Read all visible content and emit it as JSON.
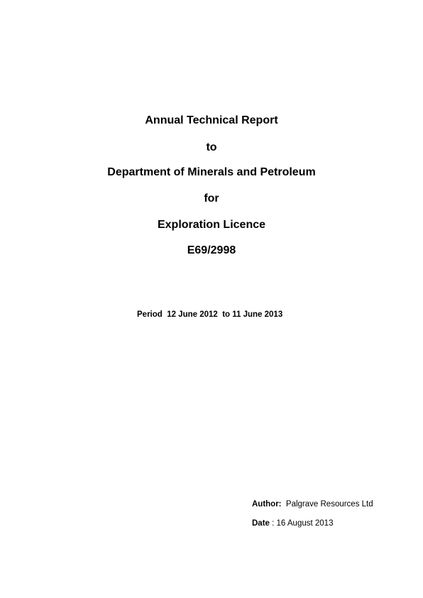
{
  "title_block": {
    "line1": "Annual Technical Report",
    "line2": "to",
    "line3": "Department of Minerals and Petroleum",
    "line4": "for",
    "line5": "Exploration Licence",
    "line6": "E69/2998"
  },
  "period": {
    "label": "Period",
    "start": "12 June 2012",
    "connector": "to",
    "end": "11 June 2013"
  },
  "author": {
    "label": "Author:",
    "value": "Palgrave Resources Ltd"
  },
  "date": {
    "label": "Date",
    "separator": " :",
    "value": "16 August 2013"
  }
}
